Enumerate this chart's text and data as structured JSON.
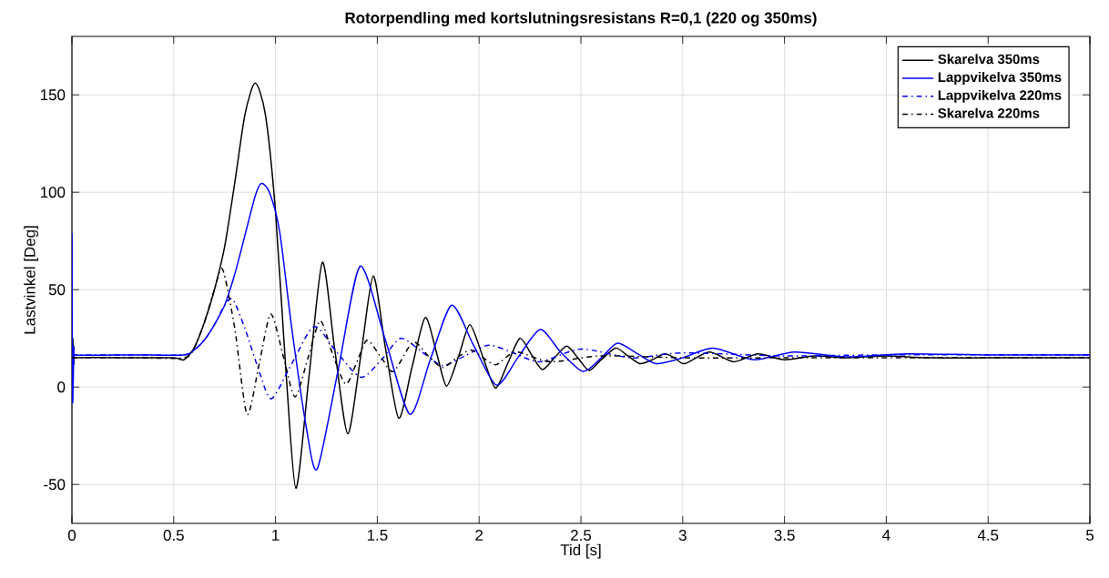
{
  "chart_data": {
    "type": "line",
    "title": "Rotorpendling med kortslutningsresistans R=0,1 (220 og 350ms)",
    "xlabel": "Tid [s]",
    "ylabel": "Lastvinkel [Deg]",
    "xlim": [
      0,
      5
    ],
    "ylim": [
      -70,
      180
    ],
    "xticks": [
      0,
      0.5,
      1,
      1.5,
      2,
      2.5,
      3,
      3.5,
      4,
      4.5,
      5
    ],
    "yticks": [
      -50,
      0,
      50,
      100,
      150
    ],
    "grid": true,
    "legend": "top right",
    "series": [
      {
        "name": "Skarelva 350ms",
        "color": "#000000",
        "line_style": "solid",
        "x": [
          0,
          0.004,
          0.01,
          0.02,
          0.3,
          0.5,
          0.55,
          0.6,
          0.65,
          0.7,
          0.75,
          0.8,
          0.85,
          0.9,
          0.95,
          1.0,
          1.05,
          1.1,
          1.165,
          1.23,
          1.29,
          1.355,
          1.42,
          1.48,
          1.54,
          1.605,
          1.67,
          1.735,
          1.79,
          1.84,
          1.9,
          1.955,
          2.02,
          2.08,
          2.14,
          2.2,
          2.255,
          2.31,
          2.37,
          2.43,
          2.485,
          2.54,
          2.6,
          2.67,
          2.73,
          2.79,
          2.85,
          2.91,
          2.96,
          3.01,
          3.13,
          3.25,
          3.37,
          3.5,
          3.65,
          3.8,
          4.0,
          4.2,
          4.5,
          5.0
        ],
        "values": [
          15,
          25,
          12,
          15,
          15,
          15,
          14,
          20,
          33,
          50,
          72,
          105,
          140,
          156,
          140,
          90,
          10,
          -52,
          6,
          64,
          20,
          -24,
          17,
          57,
          20,
          -16,
          10,
          35.7,
          18,
          0.5,
          16,
          32,
          15,
          -0.5,
          12,
          25,
          17,
          9,
          15,
          21,
          15,
          8.5,
          14,
          20,
          16,
          12,
          14,
          17,
          15,
          12,
          18,
          13,
          17,
          14,
          16,
          15,
          16,
          15,
          15,
          15
        ]
      },
      {
        "name": "Lappvikelva 350ms",
        "color": "#0000ff",
        "line_style": "solid",
        "x": [
          0,
          0.003,
          0.01,
          0.02,
          0.3,
          0.55,
          0.6,
          0.65,
          0.7,
          0.75,
          0.8,
          0.85,
          0.9,
          0.93,
          0.97,
          1.02,
          1.08,
          1.15,
          1.205,
          1.31,
          1.416,
          1.54,
          1.66,
          1.76,
          1.865,
          1.97,
          2.085,
          2.19,
          2.3,
          2.4,
          2.51,
          2.6,
          2.68,
          2.78,
          2.87,
          3.0,
          3.15,
          3.35,
          3.55,
          3.8,
          4.1,
          4.5,
          5.0
        ],
        "values": [
          79,
          -7,
          20,
          16.5,
          16.5,
          16.5,
          19,
          24,
          32,
          42,
          58,
          78,
          98,
          104.5,
          100,
          80,
          30,
          -20,
          -42,
          10,
          62,
          24,
          -14,
          14,
          42,
          22,
          1,
          15,
          29.5,
          18,
          8,
          15,
          22.5,
          17,
          12,
          15,
          20,
          14,
          18,
          15.5,
          17,
          16.5,
          16.5
        ]
      },
      {
        "name": "Lappvikelva 220ms",
        "color": "#0000ff",
        "line_style": "dashdot",
        "x": [
          0,
          0.3,
          0.55,
          0.6,
          0.65,
          0.7,
          0.75,
          0.79,
          0.85,
          0.92,
          0.98,
          1.08,
          1.19,
          1.3,
          1.42,
          1.52,
          1.615,
          1.72,
          1.82,
          1.93,
          2.05,
          2.18,
          2.3,
          2.5,
          2.75,
          3.0,
          3.5,
          4.0,
          5.0
        ],
        "values": [
          16.5,
          16.5,
          16.5,
          19,
          24,
          32,
          42,
          45,
          30,
          8,
          -6,
          12,
          31,
          18,
          5,
          14,
          25,
          18,
          11,
          16,
          21.5,
          17,
          13,
          19.5,
          15,
          17.5,
          16,
          16.5,
          16.5
        ]
      },
      {
        "name": "Skarelva 220ms",
        "color": "#000000",
        "line_style": "dashdot",
        "x": [
          0,
          0.3,
          0.55,
          0.6,
          0.65,
          0.7,
          0.74,
          0.8,
          0.86,
          0.92,
          0.977,
          1.04,
          1.096,
          1.16,
          1.22,
          1.28,
          1.345,
          1.4,
          1.45,
          1.52,
          1.58,
          1.675,
          1.75,
          1.82,
          1.89,
          1.96,
          2.02,
          2.085,
          2.18,
          2.35,
          2.6,
          3.0,
          3.5,
          4.0,
          5.0
        ],
        "values": [
          15,
          15,
          15,
          20,
          33,
          50,
          60.5,
          30,
          -14,
          12,
          37.5,
          15,
          -5,
          15,
          34,
          17,
          1.5,
          13,
          24,
          15,
          8,
          23,
          16,
          10,
          15,
          19,
          15,
          11.5,
          18,
          13,
          16,
          15,
          15,
          15,
          15
        ]
      }
    ]
  }
}
